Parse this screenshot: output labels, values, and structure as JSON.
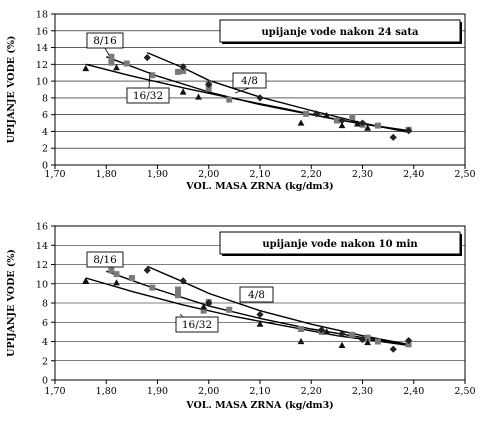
{
  "chart_data": [
    {
      "type": "scatter",
      "title_box": "upijanje vode nakon 24 sata",
      "xlabel": "VOL. MASA ZRNA (kg/dm3)",
      "ylabel": "UPIJANJE VODE (%)",
      "xlim": [
        1.7,
        2.5
      ],
      "ylim": [
        0,
        18
      ],
      "xticks": [
        "1,70",
        "1,80",
        "1,90",
        "2,00",
        "2,10",
        "2,20",
        "2,30",
        "2,40",
        "2,50"
      ],
      "yticks": [
        "0",
        "2",
        "4",
        "6",
        "8",
        "10",
        "12",
        "14",
        "16",
        "18"
      ],
      "xtick_values": [
        1.7,
        1.8,
        1.9,
        2.0,
        2.1,
        2.2,
        2.3,
        2.4,
        2.5
      ],
      "ytick_values": [
        0,
        2,
        4,
        6,
        8,
        10,
        12,
        14,
        16,
        18
      ],
      "grid": "horizontal",
      "series": [
        {
          "name": "8/16",
          "marker": "square",
          "color": "#7a7a7a",
          "points": [
            [
              1.81,
              12.9
            ],
            [
              1.81,
              12.2
            ],
            [
              1.84,
              12.1
            ],
            [
              1.89,
              10.7
            ],
            [
              1.94,
              11.1
            ],
            [
              1.95,
              11.2
            ],
            [
              2.0,
              9.7
            ],
            [
              2.0,
              9.1
            ],
            [
              2.04,
              7.8
            ],
            [
              2.19,
              6.1
            ],
            [
              2.25,
              5.3
            ],
            [
              2.28,
              5.7
            ],
            [
              2.3,
              4.8
            ],
            [
              2.33,
              4.7
            ],
            [
              2.39,
              4.2
            ]
          ],
          "trend": [
            [
              1.8,
              12.9
            ],
            [
              1.9,
              10.6
            ],
            [
              2.0,
              8.7
            ],
            [
              2.1,
              7.2
            ],
            [
              2.2,
              6.0
            ],
            [
              2.3,
              4.9
            ],
            [
              2.39,
              4.1
            ]
          ]
        },
        {
          "name": "4/8",
          "marker": "diamond",
          "color": "#222222",
          "points": [
            [
              1.88,
              12.8
            ],
            [
              1.95,
              11.7
            ],
            [
              2.0,
              9.6
            ],
            [
              2.1,
              8.0
            ],
            [
              2.21,
              6.1
            ],
            [
              2.26,
              5.3
            ],
            [
              2.3,
              5.0
            ],
            [
              2.36,
              3.3
            ],
            [
              2.39,
              4.1
            ]
          ],
          "trend": [
            [
              1.88,
              13.4
            ],
            [
              1.95,
              11.6
            ],
            [
              2.0,
              10.1
            ],
            [
              2.1,
              8.1
            ],
            [
              2.2,
              6.5
            ],
            [
              2.3,
              5.0
            ],
            [
              2.39,
              3.9
            ]
          ]
        },
        {
          "name": "16/32",
          "marker": "triangle",
          "color": "#111111",
          "points": [
            [
              1.76,
              11.5
            ],
            [
              1.82,
              11.6
            ],
            [
              1.95,
              8.7
            ],
            [
              1.98,
              8.1
            ],
            [
              2.18,
              5.0
            ],
            [
              2.23,
              5.9
            ],
            [
              2.26,
              4.7
            ],
            [
              2.29,
              4.9
            ],
            [
              2.31,
              4.4
            ]
          ],
          "trend": [
            [
              1.76,
              12.0
            ],
            [
              1.85,
              10.6
            ],
            [
              1.95,
              9.2
            ],
            [
              2.05,
              7.9
            ],
            [
              2.15,
              6.7
            ],
            [
              2.25,
              5.4
            ],
            [
              2.35,
              4.4
            ],
            [
              2.39,
              4.0
            ]
          ]
        }
      ],
      "callouts": [
        {
          "label": "8/16",
          "x": 1.81,
          "y": 12.8
        },
        {
          "label": "4/8",
          "x": 2.17,
          "y": 9.6
        },
        {
          "label": "16/32",
          "x": 1.97,
          "y": 9.6
        }
      ]
    },
    {
      "type": "scatter",
      "title_box": "upijanje vode nakon 10 min",
      "xlabel": "VOL. MASA ZRNA (kg/dm3)",
      "ylabel": "UPIJANJE VODE (%)",
      "xlim": [
        1.7,
        2.5
      ],
      "ylim": [
        0,
        16
      ],
      "xticks": [
        "1,70",
        "1,80",
        "1,90",
        "2,00",
        "2,10",
        "2,20",
        "2,30",
        "2,40",
        "2,50"
      ],
      "yticks": [
        "0",
        "2",
        "4",
        "6",
        "8",
        "10",
        "12",
        "14",
        "16"
      ],
      "xtick_values": [
        1.7,
        1.8,
        1.9,
        2.0,
        2.1,
        2.2,
        2.3,
        2.4,
        2.5
      ],
      "ytick_values": [
        0,
        2,
        4,
        6,
        8,
        10,
        12,
        14,
        16
      ],
      "grid": "horizontal",
      "series": [
        {
          "name": "8/16",
          "marker": "square",
          "color": "#7a7a7a",
          "points": [
            [
              1.81,
              11.4
            ],
            [
              1.82,
              11.0
            ],
            [
              1.85,
              10.6
            ],
            [
              1.89,
              9.6
            ],
            [
              1.94,
              9.4
            ],
            [
              1.94,
              8.8
            ],
            [
              1.99,
              7.2
            ],
            [
              2.0,
              8.1
            ],
            [
              2.04,
              7.3
            ],
            [
              2.18,
              5.3
            ],
            [
              2.22,
              5.0
            ],
            [
              2.28,
              4.7
            ],
            [
              2.31,
              4.4
            ],
            [
              2.33,
              4.0
            ],
            [
              2.39,
              3.7
            ]
          ],
          "trend": [
            [
              1.8,
              11.3
            ],
            [
              1.9,
              9.4
            ],
            [
              2.0,
              7.7
            ],
            [
              2.1,
              6.4
            ],
            [
              2.2,
              5.3
            ],
            [
              2.3,
              4.4
            ],
            [
              2.39,
              3.7
            ]
          ]
        },
        {
          "name": "4/8",
          "marker": "diamond",
          "color": "#222222",
          "points": [
            [
              1.88,
              11.4
            ],
            [
              1.95,
              10.3
            ],
            [
              2.0,
              8.0
            ],
            [
              2.1,
              6.8
            ],
            [
              2.22,
              5.2
            ],
            [
              2.26,
              4.8
            ],
            [
              2.3,
              4.2
            ],
            [
              2.36,
              3.2
            ],
            [
              2.39,
              4.1
            ]
          ],
          "trend": [
            [
              1.88,
              11.8
            ],
            [
              1.95,
              10.2
            ],
            [
              2.0,
              9.0
            ],
            [
              2.1,
              7.2
            ],
            [
              2.2,
              5.8
            ],
            [
              2.3,
              4.6
            ],
            [
              2.39,
              3.7
            ]
          ]
        },
        {
          "name": "16/32",
          "marker": "triangle",
          "color": "#111111",
          "points": [
            [
              1.76,
              10.3
            ],
            [
              1.82,
              10.1
            ],
            [
              1.99,
              7.6
            ],
            [
              2.1,
              5.8
            ],
            [
              2.18,
              4.0
            ],
            [
              2.23,
              5.0
            ],
            [
              2.26,
              3.6
            ],
            [
              2.31,
              3.9
            ]
          ],
          "trend": [
            [
              1.76,
              10.6
            ],
            [
              1.85,
              9.2
            ],
            [
              1.95,
              7.8
            ],
            [
              2.05,
              6.6
            ],
            [
              2.15,
              5.6
            ],
            [
              2.25,
              4.6
            ],
            [
              2.35,
              3.9
            ],
            [
              2.39,
              3.6
            ]
          ]
        }
      ],
      "callouts": [
        {
          "label": "8/16",
          "x": 1.81,
          "y": 11.3
        },
        {
          "label": "4/8",
          "x": 2.15,
          "y": 8.0
        },
        {
          "label": "16/32",
          "x": 2.01,
          "y": 7.5
        }
      ]
    }
  ]
}
